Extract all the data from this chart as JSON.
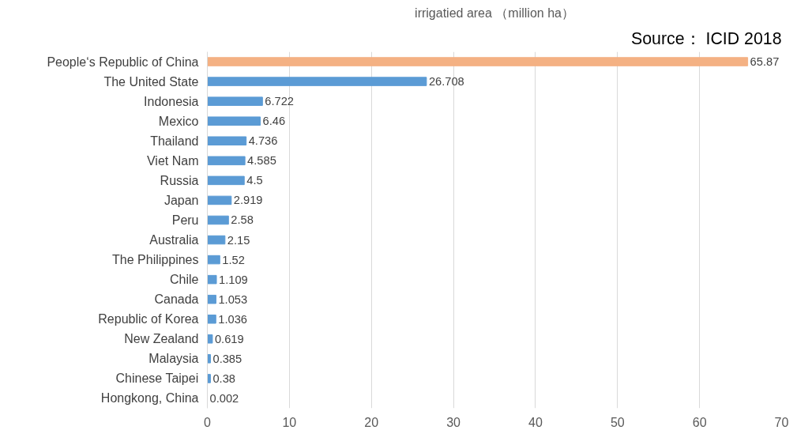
{
  "chart_data": {
    "type": "bar",
    "orientation": "horizontal",
    "title": "irrigatied area （million ha）",
    "annotations": [
      "Source： ICID 2018"
    ],
    "categories": [
      "People‘s Republic of China",
      "The United State",
      "Indonesia",
      "Mexico",
      "Thailand",
      "Viet Nam",
      "Russia",
      "Japan",
      "Peru",
      "Australia",
      "The Philippines",
      "Chile",
      "Canada",
      "Republic of Korea",
      "New Zealand",
      "Malaysia",
      "Chinese Taipei",
      "Hongkong, China"
    ],
    "values": [
      65.87,
      26.708,
      6.722,
      6.46,
      4.736,
      4.585,
      4.5,
      2.919,
      2.58,
      2.15,
      1.52,
      1.109,
      1.053,
      1.036,
      0.619,
      0.385,
      0.38,
      0.002
    ],
    "colors": [
      "#f4b183",
      "#5b9bd5",
      "#5b9bd5",
      "#5b9bd5",
      "#5b9bd5",
      "#5b9bd5",
      "#5b9bd5",
      "#5b9bd5",
      "#5b9bd5",
      "#5b9bd5",
      "#5b9bd5",
      "#5b9bd5",
      "#5b9bd5",
      "#5b9bd5",
      "#5b9bd5",
      "#5b9bd5",
      "#5b9bd5",
      "#5b9bd5"
    ],
    "xlim": [
      0,
      70
    ],
    "xticks": [
      0,
      10,
      20,
      30,
      40,
      50,
      60,
      70
    ],
    "grid": "x",
    "data_labels": true
  }
}
